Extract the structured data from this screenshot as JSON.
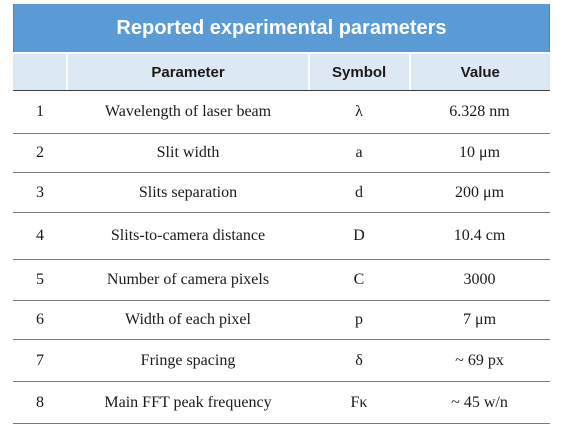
{
  "table": {
    "title": "Reported experimental parameters",
    "headers": {
      "number": "",
      "parameter": "Parameter",
      "symbol": "Symbol",
      "value": "Value"
    },
    "rows": [
      {
        "number": "1",
        "parameter": "Wavelength of laser beam",
        "symbol": "λ",
        "value": "6.328 nm"
      },
      {
        "number": "2",
        "parameter": "Slit width",
        "symbol": "a",
        "value": "10 μm"
      },
      {
        "number": "3",
        "parameter": "Slits separation",
        "symbol": "d",
        "value": "200 μm"
      },
      {
        "number": "4",
        "parameter": "Slits-to-camera distance",
        "symbol": "D",
        "value": "10.4 cm"
      },
      {
        "number": "5",
        "parameter": "Number of camera pixels",
        "symbol": "C",
        "value": "3000"
      },
      {
        "number": "6",
        "parameter": "Width of each pixel",
        "symbol": "p",
        "value": "7 μm"
      },
      {
        "number": "7",
        "parameter": "Fringe spacing",
        "symbol": "δ",
        "value": "~ 69 px"
      },
      {
        "number": "8",
        "parameter": "Main FFT peak frequency",
        "symbol": "Fκ",
        "value": "~ 45 w/n"
      }
    ]
  }
}
